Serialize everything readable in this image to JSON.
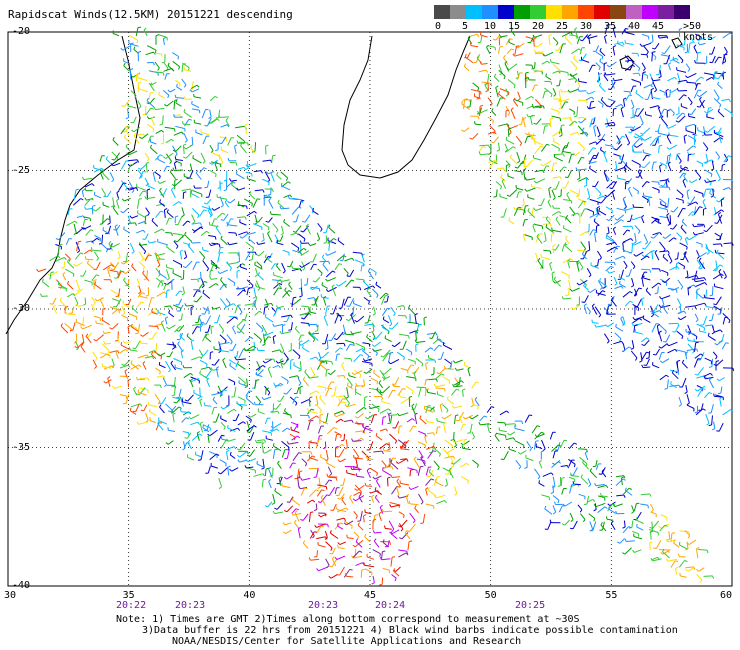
{
  "title": "Rapidscat Winds(12.5KM) 20151221 descending",
  "legend": {
    "colors": [
      "#4a4a4a",
      "#8c8c8c",
      "#00bfff",
      "#1e90ff",
      "#0000cd",
      "#00a000",
      "#33cc33",
      "#ffe000",
      "#ffa500",
      "#ff4500",
      "#e00000",
      "#8b4513",
      "#c060c0",
      "#c000ff",
      "#7a1fa0",
      "#3c006e"
    ],
    "labels": [
      "0",
      "5",
      "10",
      "15",
      "20",
      "25",
      "30",
      "35",
      "40",
      "45",
      ">50 knots"
    ]
  },
  "axes": {
    "x_ticks": [
      "30",
      "35",
      "40",
      "45",
      "50",
      "55",
      "60"
    ],
    "y_ticks": [
      "-20",
      "-25",
      "-30",
      "-35",
      "-40"
    ]
  },
  "times": [
    "20:22",
    "20:23",
    "20:23",
    "20:24",
    "20:25"
  ],
  "notes": [
    "Note: 1) Times are GMT 2)Times along bottom correspond to measurement at ~30S",
    "3)Data buffer is 22 hrs from 20151221 4) Black wind barbs indicate possible contamination",
    "NOAA/NESDIS/Center for Satellite Applications and Research"
  ]
}
